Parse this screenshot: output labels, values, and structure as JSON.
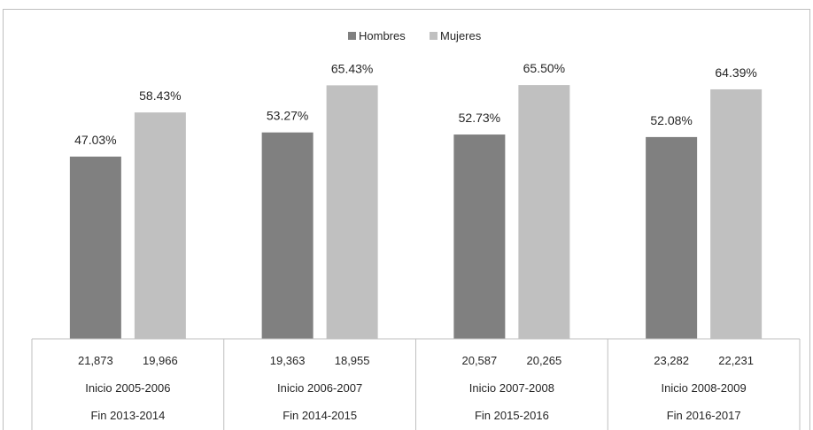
{
  "chart_data": {
    "type": "bar",
    "title": "",
    "xlabel": "",
    "ylabel": "",
    "ylim": [
      0,
      100
    ],
    "legend_position": "top-center",
    "grid": false,
    "categories": [
      {
        "counts": [
          "21,873",
          "19,966"
        ],
        "line1": "Inicio 2005-2006",
        "line2": "Fin 2013-2014"
      },
      {
        "counts": [
          "19,363",
          "18,955"
        ],
        "line1": "Inicio 2006-2007",
        "line2": "Fin 2014-2015"
      },
      {
        "counts": [
          "20,587",
          "20,265"
        ],
        "line1": "Inicio 2007-2008",
        "line2": "Fin 2015-2016"
      },
      {
        "counts": [
          "23,282",
          "22,231"
        ],
        "line1": "Inicio 2008-2009",
        "line2": "Fin 2016-2017"
      }
    ],
    "series": [
      {
        "name": "Hombres",
        "color": "#808080",
        "values": [
          47.03,
          53.27,
          52.73,
          52.08
        ],
        "labels": [
          "47.03%",
          "53.27%",
          "52.73%",
          "52.08%"
        ]
      },
      {
        "name": "Mujeres",
        "color": "#c0c0c0",
        "values": [
          58.43,
          65.43,
          65.5,
          64.39
        ],
        "labels": [
          "58.43%",
          "65.43%",
          "65.50%",
          "64.39%"
        ]
      }
    ]
  }
}
